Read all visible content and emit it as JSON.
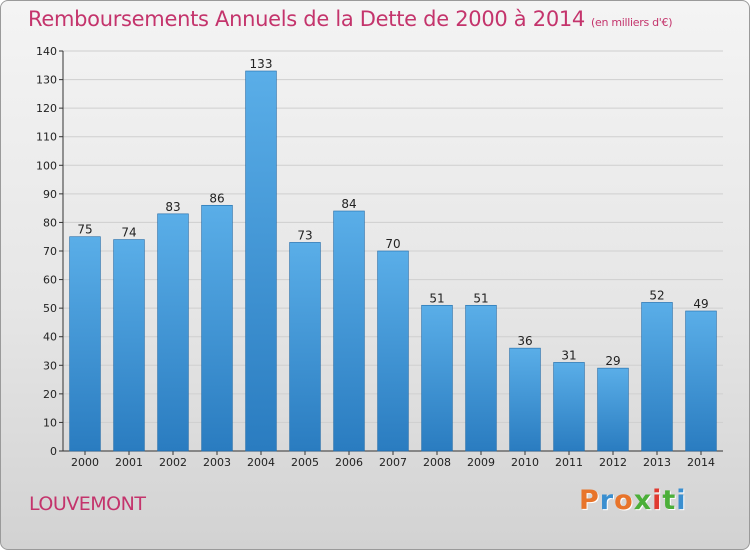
{
  "header": {
    "title": "Remboursements Annuels de la Dette de 2000 à 2014",
    "subtitle": "(en milliers d'€)"
  },
  "footer": {
    "commune": "LOUVEMONT",
    "brand": "Proxiti"
  },
  "colors": {
    "title": "#c4346c",
    "bar_light": "#5aaee8",
    "bar_dark": "#2a7cc0",
    "brand_letters": [
      "#e8742a",
      "#3a8fd0",
      "#e8742a",
      "#4caf3a",
      "#e03a30",
      "#4caf3a",
      "#3a8fd0"
    ]
  },
  "chart_data": {
    "type": "bar",
    "title": "Remboursements Annuels de la Dette de 2000 à 2014",
    "subtitle": "(en milliers d'€)",
    "xlabel": "",
    "ylabel": "",
    "categories": [
      "2000",
      "2001",
      "2002",
      "2003",
      "2004",
      "2005",
      "2006",
      "2007",
      "2008",
      "2009",
      "2010",
      "2011",
      "2012",
      "2013",
      "2014"
    ],
    "values": [
      75,
      74,
      83,
      86,
      133,
      73,
      84,
      70,
      51,
      51,
      36,
      31,
      29,
      52,
      49
    ],
    "ylim": [
      0,
      140
    ],
    "yticks": [
      0,
      10,
      20,
      30,
      40,
      50,
      60,
      70,
      80,
      90,
      100,
      110,
      120,
      130,
      140
    ],
    "grid": true,
    "legend": "none"
  }
}
